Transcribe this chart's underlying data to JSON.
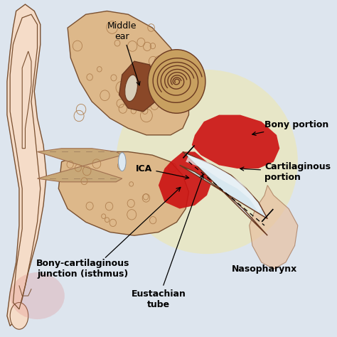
{
  "bg_color": "#dde5ee",
  "labels": {
    "middle_ear": "Middle\near",
    "bony_portion": "Bony portion",
    "cartilaginous_portion": "Cartilaginous\nportion",
    "ica": "ICA",
    "bony_cartilaginous": "Bony-cartilaginous\njunction (isthmus)",
    "eustachian_tube": "Eustachian\ntube",
    "nasopharynx": "Nasopharynx"
  },
  "ear_color": "#ddb88a",
  "ear_outline": "#7a5030",
  "ear_outline2": "#a07050",
  "red_color": "#cc1111",
  "red_soft": "#e05050",
  "dark_brown": "#6a3820",
  "mid_brown": "#9a6040",
  "light_skin": "#f0d4b8",
  "pinna_skin": "#f5dcc8",
  "canal_color": "#d8b898",
  "cochlea_bg": "#c8a060",
  "tube_color": "#e0cdb0",
  "tube_light": "#d8e8f0",
  "label_fontsize": 9,
  "lw_main": 1.2,
  "yellow_glow": "#f5e898"
}
